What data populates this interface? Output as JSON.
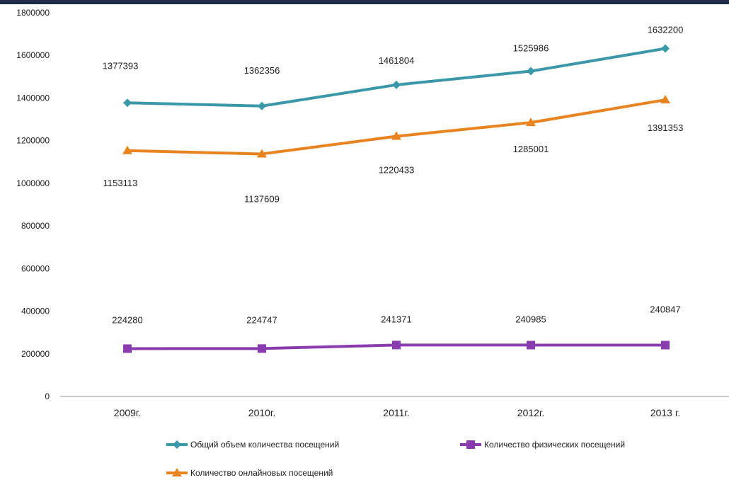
{
  "chart_data": {
    "type": "line",
    "title": "",
    "xlabel": "",
    "ylabel": "",
    "ylim": [
      0,
      1800000
    ],
    "yticks": [
      0,
      200000,
      400000,
      600000,
      800000,
      1000000,
      1200000,
      1400000,
      1600000,
      1800000
    ],
    "grid": false,
    "legend_position": "bottom",
    "categories": [
      "2009г.",
      "2010г.",
      "2011г.",
      "2012г.",
      "2013 г."
    ],
    "series": [
      {
        "name": "Общий объем количества посещений",
        "color": "#3a98a8",
        "marker": "diamond",
        "values": [
          1377393,
          1362356,
          1461804,
          1525986,
          1632200
        ],
        "labels": [
          "1377393",
          "1362356",
          "1461804",
          "1525986",
          "1632200"
        ]
      },
      {
        "name": "Количество физических посещений",
        "color": "#8a3bb0",
        "marker": "square",
        "values": [
          224280,
          224747,
          241371,
          240985,
          240847
        ],
        "labels": [
          "224280",
          "224747",
          "241371",
          "240985",
          "240847"
        ]
      },
      {
        "name": "Количество онлайновых посещений",
        "color": "#e8831f",
        "marker": "triangle",
        "values": [
          1153113,
          1137609,
          1220433,
          1285001,
          1391353
        ],
        "labels": [
          "1153113",
          "1137609",
          "1220433",
          "1285001",
          "1391353"
        ]
      }
    ]
  }
}
